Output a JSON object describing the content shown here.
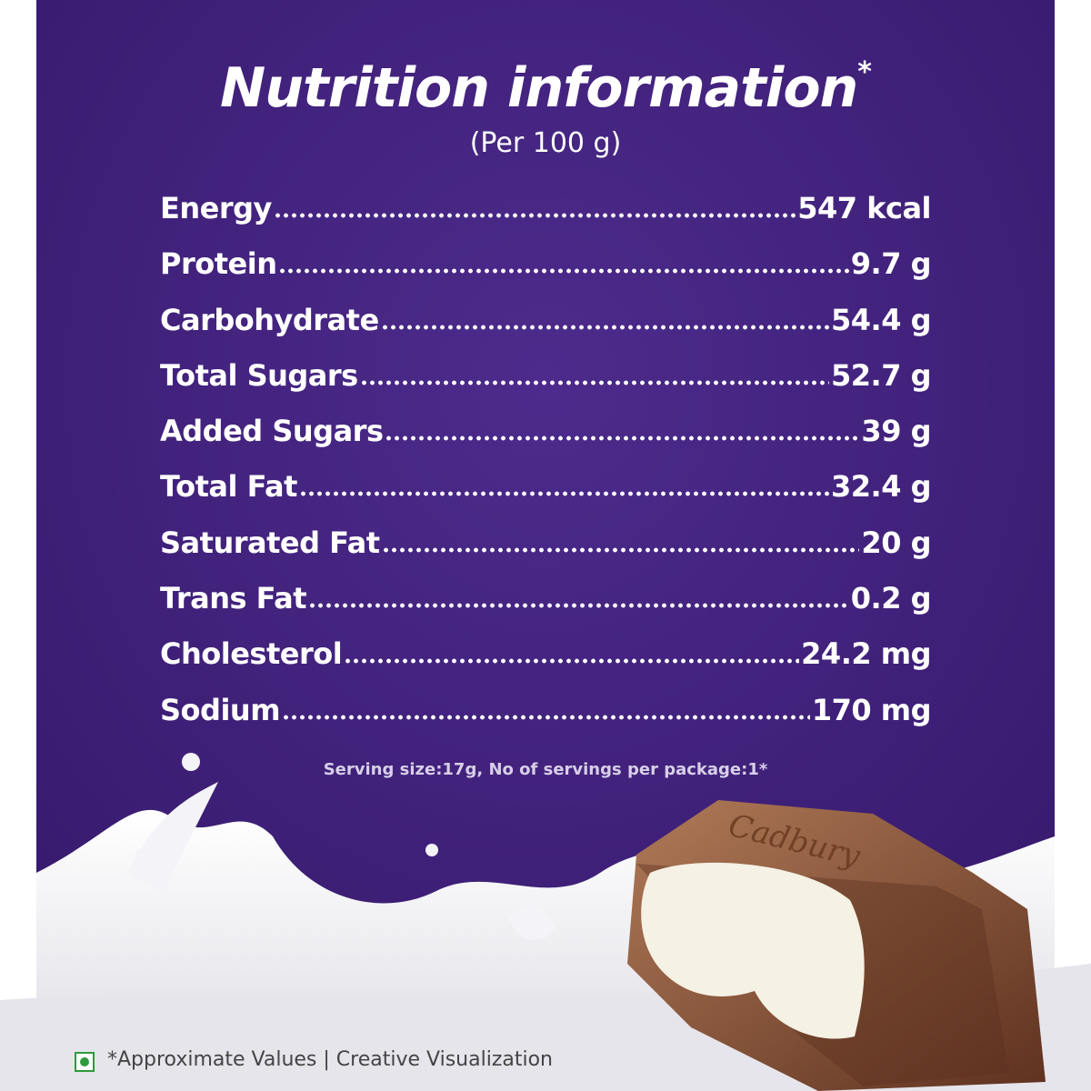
{
  "header": {
    "title": "Nutrition information",
    "title_mark": "*",
    "subtitle": "(Per 100 g)"
  },
  "table": {
    "rows": [
      [
        "Energy",
        "547 kcal"
      ],
      [
        "Protein",
        "9.7 g"
      ],
      [
        "Carbohydrate",
        "54.4 g"
      ],
      [
        "Total Sugars",
        "52.7 g"
      ],
      [
        "Added Sugars",
        "39 g"
      ],
      [
        "Total Fat",
        "32.4 g"
      ],
      [
        "Saturated Fat",
        "20 g"
      ],
      [
        "Trans Fat",
        "0.2 g"
      ],
      [
        "Cholesterol",
        "24.2 mg"
      ],
      [
        "Sodium",
        "170 mg"
      ]
    ]
  },
  "serving_note": "Serving size:17g, No of servings per package:1*",
  "brand": "Cadbury",
  "footer": "*Approximate Values | Creative Visualization"
}
